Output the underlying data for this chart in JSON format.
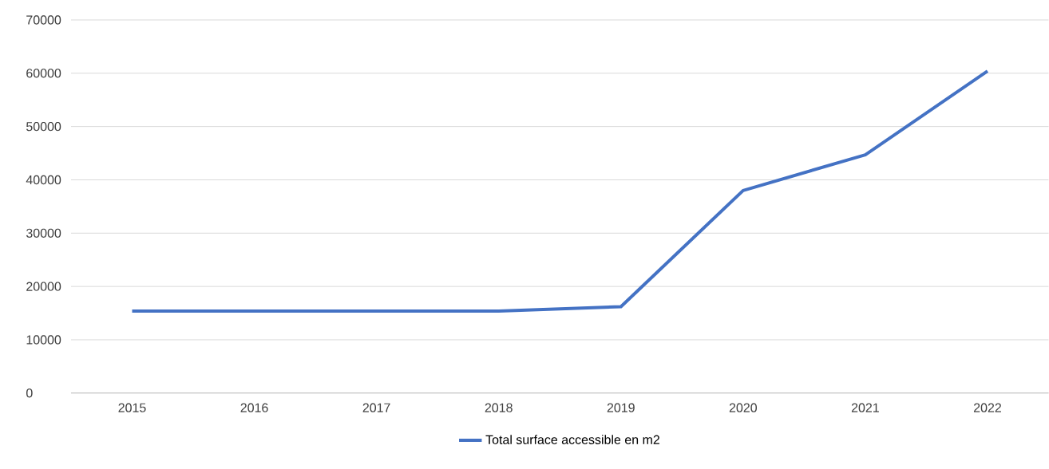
{
  "chart_data": {
    "type": "line",
    "categories": [
      "2015",
      "2016",
      "2017",
      "2018",
      "2019",
      "2020",
      "2021",
      "2022"
    ],
    "series": [
      {
        "name": "Total surface accessible en m2",
        "color": "#4472c4",
        "values": [
          15400,
          15400,
          15400,
          15400,
          16200,
          38000,
          44700,
          60400
        ]
      }
    ],
    "ylim": [
      0,
      70000
    ],
    "yticks": [
      0,
      10000,
      20000,
      30000,
      40000,
      50000,
      60000,
      70000
    ],
    "grid": "y",
    "legend": "bottom",
    "marker": "none",
    "line_style": "solid"
  }
}
